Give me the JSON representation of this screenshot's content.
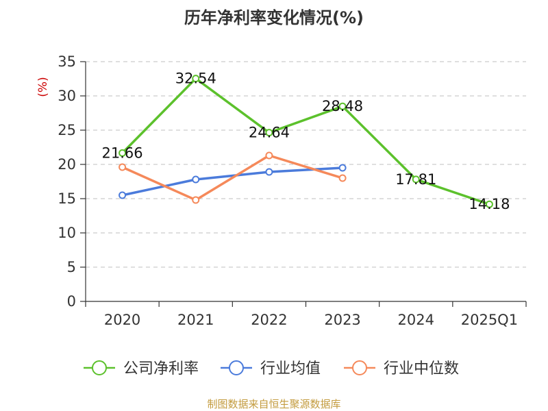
{
  "chart_data": {
    "type": "line",
    "title": "历年净利率变化情况(%)",
    "ylabel": "(%)",
    "xlabel": "",
    "categories": [
      "2020",
      "2021",
      "2022",
      "2023",
      "2024",
      "2025Q1"
    ],
    "ylim": [
      0,
      35
    ],
    "yticks": [
      0,
      5,
      10,
      15,
      20,
      25,
      30,
      35
    ],
    "grid": true,
    "legend_position": "bottom",
    "series": [
      {
        "name": "公司净利率",
        "color": "#5cc12c",
        "values": [
          21.66,
          32.54,
          24.64,
          28.48,
          17.81,
          14.18
        ],
        "labels": [
          "21.66",
          "32.54",
          "24.64",
          "28.48",
          "17.81",
          "14.18"
        ]
      },
      {
        "name": "行业均值",
        "color": "#4b7bdb",
        "values": [
          15.5,
          17.8,
          18.9,
          19.5,
          null,
          null
        ]
      },
      {
        "name": "行业中位数",
        "color": "#f5895a",
        "values": [
          19.6,
          14.8,
          21.3,
          18.0,
          null,
          null
        ]
      }
    ],
    "source": "制图数据来自恒生聚源数据库"
  }
}
